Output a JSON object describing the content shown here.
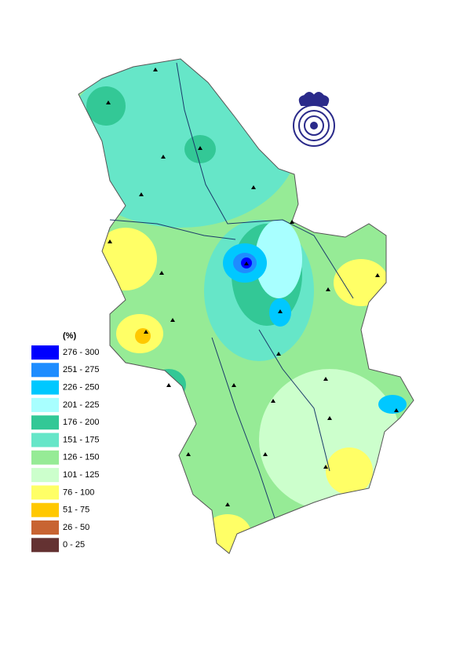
{
  "legend": {
    "title": "(%)",
    "items": [
      {
        "label": "276 - 300",
        "color": "#0000ff"
      },
      {
        "label": "251 - 275",
        "color": "#1e8cff"
      },
      {
        "label": "226 - 250",
        "color": "#00c8ff"
      },
      {
        "label": "201 - 225",
        "color": "#a8ffff"
      },
      {
        "label": "176 - 200",
        "color": "#33c896"
      },
      {
        "label": "151 - 175",
        "color": "#66e6c8"
      },
      {
        "label": "126 - 150",
        "color": "#96eb96"
      },
      {
        "label": "101 - 125",
        "color": "#ccffcc"
      },
      {
        "label": "76 - 100",
        "color": "#ffff66"
      },
      {
        "label": "51 - 75",
        "color": "#ffc800"
      },
      {
        "label": "26 - 50",
        "color": "#c86432"
      },
      {
        "label": "0 - 25",
        "color": "#643232"
      }
    ]
  }
}
